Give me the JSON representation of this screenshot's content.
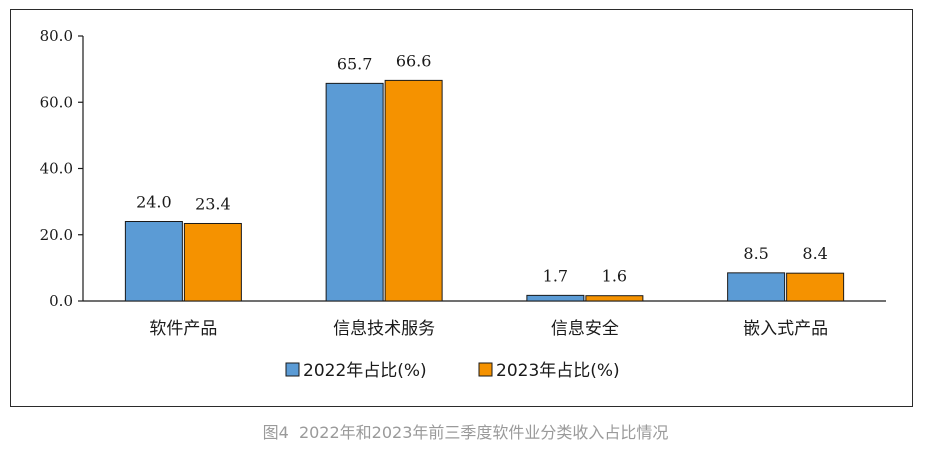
{
  "caption": "图4  2022年和2023年前三季度软件业分类收入占比情况",
  "chart_data": {
    "type": "bar",
    "title": "",
    "xlabel": "",
    "ylabel": "",
    "categories": [
      "软件产品",
      "信息技术服务",
      "信息安全",
      "嵌入式产品"
    ],
    "series": [
      {
        "name": "2022年占比(%)",
        "values": [
          24.0,
          65.7,
          1.7,
          8.5
        ],
        "value_labels": [
          "24.0",
          "65.7",
          "1.7",
          "8.5"
        ],
        "color": "#5b9bd5"
      },
      {
        "name": "2023年占比(%)",
        "values": [
          23.4,
          66.6,
          1.6,
          8.4
        ],
        "value_labels": [
          "23.4",
          "66.6",
          "1.6",
          "8.4"
        ],
        "color": "#f59200"
      }
    ],
    "ylim": [
      0,
      80
    ],
    "yticks": [
      0,
      20,
      40,
      60,
      80
    ],
    "ytick_labels": [
      "0.0",
      "20.0",
      "40.0",
      "60.0",
      "80.0"
    ],
    "grid": false,
    "legend_position": "bottom-center",
    "bar_outline_color": "#1a1a1a"
  }
}
